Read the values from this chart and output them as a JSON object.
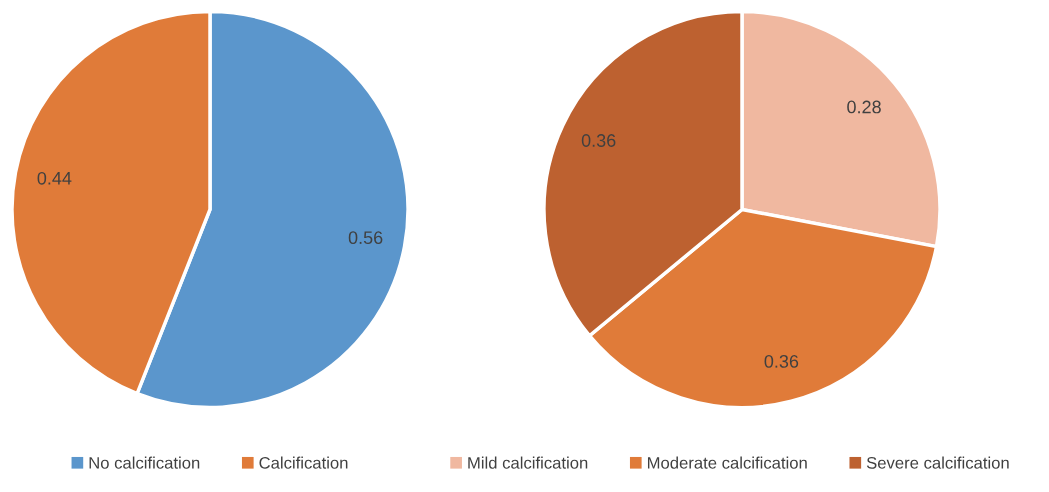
{
  "chart_data": [
    {
      "type": "pie",
      "categories": [
        "No calcification",
        "Calcification"
      ],
      "values": [
        0.56,
        0.44
      ],
      "colors": [
        "#5b96cc",
        "#e07b39"
      ],
      "data_labels": true,
      "legend": "bottom"
    },
    {
      "type": "pie",
      "categories": [
        "Mild calcification",
        "Moderate calcification",
        "Severe calcification"
      ],
      "values": [
        0.28,
        0.36,
        0.36
      ],
      "colors": [
        "#f0b8a0",
        "#e07b39",
        "#bd6130"
      ],
      "data_labels": true,
      "legend": "bottom"
    }
  ]
}
